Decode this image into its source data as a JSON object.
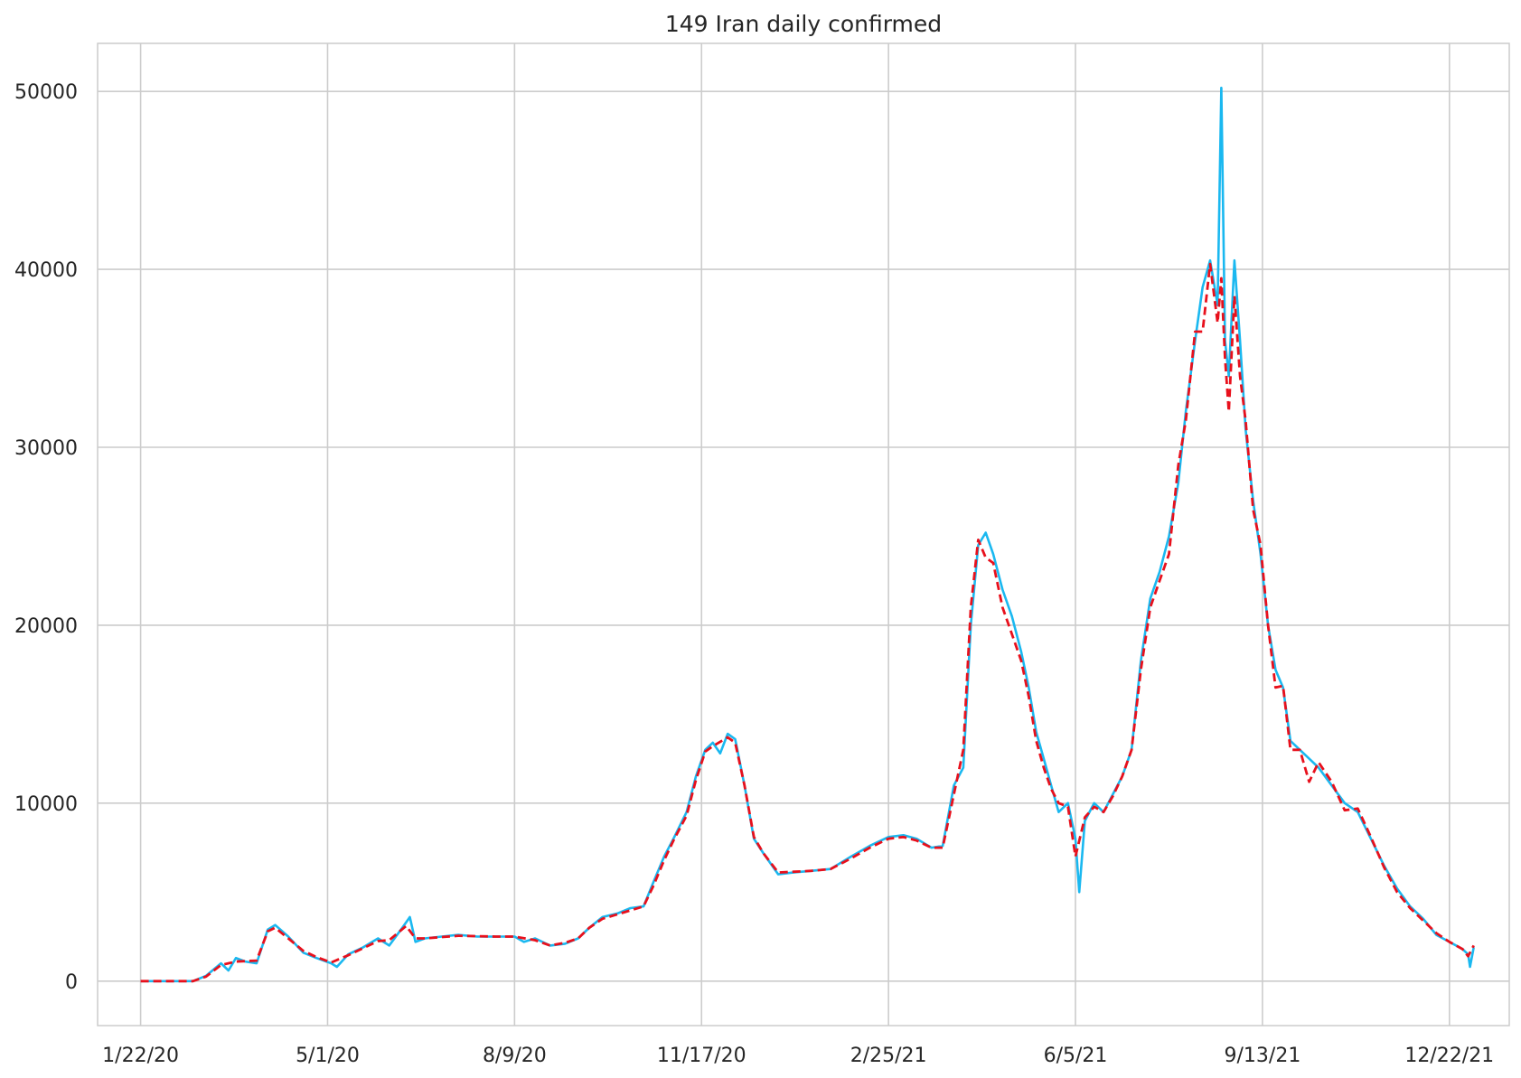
{
  "chart_data": {
    "type": "line",
    "title": "149 Iran daily confirmed",
    "xlabel": "",
    "ylabel": "",
    "x_start": "2020-01-22",
    "x_end": "2022-01-04",
    "xlim": [
      "2019-12-30",
      "2022-01-23"
    ],
    "ylim": [
      -2500,
      52700
    ],
    "x_ticks": [
      "1/22/20",
      "5/1/20",
      "8/9/20",
      "11/17/20",
      "2/25/21",
      "6/5/21",
      "9/13/21",
      "12/22/21"
    ],
    "y_ticks": [
      "0",
      "10000",
      "20000",
      "30000",
      "40000",
      "50000"
    ],
    "grid": true,
    "legend": "none",
    "series": [
      {
        "color": "#1ab8f0",
        "style": "solid",
        "points": [
          [
            "2020-01-22",
            0
          ],
          [
            "2020-02-19",
            0
          ],
          [
            "2020-02-26",
            300
          ],
          [
            "2020-03-05",
            1000
          ],
          [
            "2020-03-09",
            600
          ],
          [
            "2020-03-13",
            1300
          ],
          [
            "2020-03-18",
            1100
          ],
          [
            "2020-03-24",
            1000
          ],
          [
            "2020-03-30",
            2900
          ],
          [
            "2020-04-03",
            3150
          ],
          [
            "2020-04-10",
            2500
          ],
          [
            "2020-04-18",
            1600
          ],
          [
            "2020-04-25",
            1300
          ],
          [
            "2020-05-03",
            1000
          ],
          [
            "2020-05-06",
            800
          ],
          [
            "2020-05-12",
            1500
          ],
          [
            "2020-05-20",
            1900
          ],
          [
            "2020-05-28",
            2400
          ],
          [
            "2020-06-03",
            2000
          ],
          [
            "2020-06-10",
            3000
          ],
          [
            "2020-06-14",
            3600
          ],
          [
            "2020-06-17",
            2200
          ],
          [
            "2020-06-22",
            2400
          ],
          [
            "2020-07-01",
            2500
          ],
          [
            "2020-07-10",
            2600
          ],
          [
            "2020-07-20",
            2500
          ],
          [
            "2020-07-30",
            2500
          ],
          [
            "2020-08-09",
            2500
          ],
          [
            "2020-08-14",
            2200
          ],
          [
            "2020-08-20",
            2400
          ],
          [
            "2020-08-28",
            2000
          ],
          [
            "2020-09-05",
            2100
          ],
          [
            "2020-09-12",
            2400
          ],
          [
            "2020-09-18",
            3000
          ],
          [
            "2020-09-25",
            3600
          ],
          [
            "2020-10-03",
            3800
          ],
          [
            "2020-10-10",
            4100
          ],
          [
            "2020-10-17",
            4200
          ],
          [
            "2020-10-22",
            5500
          ],
          [
            "2020-10-28",
            7000
          ],
          [
            "2020-11-02",
            8000
          ],
          [
            "2020-11-09",
            9500
          ],
          [
            "2020-11-14",
            11500
          ],
          [
            "2020-11-19",
            13000
          ],
          [
            "2020-11-23",
            13400
          ],
          [
            "2020-11-27",
            12800
          ],
          [
            "2020-12-01",
            13900
          ],
          [
            "2020-12-05",
            13600
          ],
          [
            "2020-12-10",
            11000
          ],
          [
            "2020-12-15",
            8000
          ],
          [
            "2020-12-20",
            7200
          ],
          [
            "2020-12-28",
            6000
          ],
          [
            "2021-01-05",
            6100
          ],
          [
            "2021-01-15",
            6200
          ],
          [
            "2021-01-25",
            6300
          ],
          [
            "2021-02-05",
            7000
          ],
          [
            "2021-02-15",
            7600
          ],
          [
            "2021-02-25",
            8100
          ],
          [
            "2021-03-05",
            8200
          ],
          [
            "2021-03-12",
            8000
          ],
          [
            "2021-03-20",
            7500
          ],
          [
            "2021-03-26",
            7600
          ],
          [
            "2021-04-01",
            11000
          ],
          [
            "2021-04-06",
            12000
          ],
          [
            "2021-04-10",
            20000
          ],
          [
            "2021-04-14",
            24500
          ],
          [
            "2021-04-18",
            25200
          ],
          [
            "2021-04-22",
            24000
          ],
          [
            "2021-04-27",
            22000
          ],
          [
            "2021-05-02",
            20500
          ],
          [
            "2021-05-07",
            18500
          ],
          [
            "2021-05-11",
            16500
          ],
          [
            "2021-05-15",
            14000
          ],
          [
            "2021-05-19",
            12500
          ],
          [
            "2021-05-23",
            11000
          ],
          [
            "2021-05-27",
            9500
          ],
          [
            "2021-06-01",
            10000
          ],
          [
            "2021-06-05",
            8000
          ],
          [
            "2021-06-07",
            5000
          ],
          [
            "2021-06-10",
            9000
          ],
          [
            "2021-06-15",
            10000
          ],
          [
            "2021-06-20",
            9500
          ],
          [
            "2021-06-25",
            10500
          ],
          [
            "2021-06-30",
            11500
          ],
          [
            "2021-07-05",
            13000
          ],
          [
            "2021-07-10",
            18000
          ],
          [
            "2021-07-15",
            21500
          ],
          [
            "2021-07-20",
            23000
          ],
          [
            "2021-07-25",
            25000
          ],
          [
            "2021-07-30",
            28000
          ],
          [
            "2021-08-03",
            32000
          ],
          [
            "2021-08-08",
            36000
          ],
          [
            "2021-08-12",
            39000
          ],
          [
            "2021-08-16",
            40500
          ],
          [
            "2021-08-20",
            38000
          ],
          [
            "2021-08-22",
            50200
          ],
          [
            "2021-08-24",
            36000
          ],
          [
            "2021-08-26",
            34000
          ],
          [
            "2021-08-29",
            40500
          ],
          [
            "2021-09-01",
            36000
          ],
          [
            "2021-09-04",
            31000
          ],
          [
            "2021-09-08",
            27000
          ],
          [
            "2021-09-12",
            24000
          ],
          [
            "2021-09-16",
            20000
          ],
          [
            "2021-09-20",
            17500
          ],
          [
            "2021-09-24",
            16500
          ],
          [
            "2021-09-28",
            13500
          ],
          [
            "2021-10-03",
            13000
          ],
          [
            "2021-10-08",
            12500
          ],
          [
            "2021-10-13",
            12000
          ],
          [
            "2021-10-20",
            11000
          ],
          [
            "2021-10-27",
            10000
          ],
          [
            "2021-11-03",
            9500
          ],
          [
            "2021-11-10",
            8000
          ],
          [
            "2021-11-17",
            6500
          ],
          [
            "2021-11-24",
            5200
          ],
          [
            "2021-12-01",
            4200
          ],
          [
            "2021-12-08",
            3500
          ],
          [
            "2021-12-15",
            2600
          ],
          [
            "2021-12-22",
            2200
          ],
          [
            "2021-12-29",
            1800
          ],
          [
            "2022-01-01",
            1500
          ],
          [
            "2022-01-02",
            800
          ],
          [
            "2022-01-04",
            1900
          ]
        ]
      },
      {
        "color": "#e8101c",
        "style": "dashed",
        "points": [
          [
            "2020-01-22",
            0
          ],
          [
            "2020-02-19",
            0
          ],
          [
            "2020-02-26",
            250
          ],
          [
            "2020-03-05",
            900
          ],
          [
            "2020-03-13",
            1100
          ],
          [
            "2020-03-24",
            1150
          ],
          [
            "2020-03-30",
            2800
          ],
          [
            "2020-04-03",
            3000
          ],
          [
            "2020-04-10",
            2400
          ],
          [
            "2020-04-18",
            1700
          ],
          [
            "2020-04-25",
            1350
          ],
          [
            "2020-05-03",
            1050
          ],
          [
            "2020-05-12",
            1450
          ],
          [
            "2020-05-20",
            1850
          ],
          [
            "2020-05-28",
            2250
          ],
          [
            "2020-06-03",
            2300
          ],
          [
            "2020-06-12",
            3100
          ],
          [
            "2020-06-17",
            2400
          ],
          [
            "2020-06-22",
            2400
          ],
          [
            "2020-07-10",
            2550
          ],
          [
            "2020-07-30",
            2500
          ],
          [
            "2020-08-09",
            2500
          ],
          [
            "2020-08-20",
            2300
          ],
          [
            "2020-08-28",
            2000
          ],
          [
            "2020-09-05",
            2150
          ],
          [
            "2020-09-12",
            2400
          ],
          [
            "2020-09-18",
            3000
          ],
          [
            "2020-09-25",
            3500
          ],
          [
            "2020-10-03",
            3750
          ],
          [
            "2020-10-17",
            4200
          ],
          [
            "2020-10-22",
            5300
          ],
          [
            "2020-10-28",
            6800
          ],
          [
            "2020-11-02",
            7900
          ],
          [
            "2020-11-09",
            9300
          ],
          [
            "2020-11-14",
            11300
          ],
          [
            "2020-11-19",
            12900
          ],
          [
            "2020-11-23",
            13200
          ],
          [
            "2020-12-01",
            13700
          ],
          [
            "2020-12-05",
            13400
          ],
          [
            "2020-12-10",
            11000
          ],
          [
            "2020-12-15",
            8100
          ],
          [
            "2020-12-20",
            7200
          ],
          [
            "2020-12-28",
            6100
          ],
          [
            "2021-01-15",
            6200
          ],
          [
            "2021-01-25",
            6300
          ],
          [
            "2021-02-05",
            6900
          ],
          [
            "2021-02-15",
            7500
          ],
          [
            "2021-02-25",
            8000
          ],
          [
            "2021-03-05",
            8100
          ],
          [
            "2021-03-12",
            7900
          ],
          [
            "2021-03-20",
            7500
          ],
          [
            "2021-03-26",
            7500
          ],
          [
            "2021-04-01",
            10500
          ],
          [
            "2021-04-06",
            13000
          ],
          [
            "2021-04-10",
            21000
          ],
          [
            "2021-04-14",
            24800
          ],
          [
            "2021-04-18",
            23800
          ],
          [
            "2021-04-22",
            23500
          ],
          [
            "2021-04-27",
            21000
          ],
          [
            "2021-05-02",
            19500
          ],
          [
            "2021-05-07",
            18000
          ],
          [
            "2021-05-11",
            16000
          ],
          [
            "2021-05-15",
            13500
          ],
          [
            "2021-05-19",
            12000
          ],
          [
            "2021-05-23",
            10800
          ],
          [
            "2021-05-27",
            10000
          ],
          [
            "2021-06-01",
            9800
          ],
          [
            "2021-06-05",
            7000
          ],
          [
            "2021-06-10",
            9200
          ],
          [
            "2021-06-15",
            9800
          ],
          [
            "2021-06-20",
            9500
          ],
          [
            "2021-06-25",
            10400
          ],
          [
            "2021-06-30",
            11500
          ],
          [
            "2021-07-05",
            13000
          ],
          [
            "2021-07-10",
            17500
          ],
          [
            "2021-07-15",
            21000
          ],
          [
            "2021-07-20",
            22500
          ],
          [
            "2021-07-25",
            24000
          ],
          [
            "2021-07-30",
            29000
          ],
          [
            "2021-08-03",
            31500
          ],
          [
            "2021-08-08",
            36500
          ],
          [
            "2021-08-12",
            36500
          ],
          [
            "2021-08-16",
            40300
          ],
          [
            "2021-08-20",
            37000
          ],
          [
            "2021-08-22",
            39500
          ],
          [
            "2021-08-24",
            35000
          ],
          [
            "2021-08-26",
            32000
          ],
          [
            "2021-08-29",
            38500
          ],
          [
            "2021-09-01",
            34000
          ],
          [
            "2021-09-04",
            31500
          ],
          [
            "2021-09-08",
            26500
          ],
          [
            "2021-09-12",
            24500
          ],
          [
            "2021-09-16",
            20000
          ],
          [
            "2021-09-20",
            16500
          ],
          [
            "2021-09-24",
            16600
          ],
          [
            "2021-09-28",
            13000
          ],
          [
            "2021-10-03",
            13000
          ],
          [
            "2021-10-08",
            11200
          ],
          [
            "2021-10-13",
            12300
          ],
          [
            "2021-10-20",
            11200
          ],
          [
            "2021-10-27",
            9600
          ],
          [
            "2021-11-03",
            9700
          ],
          [
            "2021-11-10",
            8100
          ],
          [
            "2021-11-17",
            6400
          ],
          [
            "2021-11-24",
            5000
          ],
          [
            "2021-12-01",
            4100
          ],
          [
            "2021-12-08",
            3400
          ],
          [
            "2021-12-15",
            2700
          ],
          [
            "2021-12-22",
            2200
          ],
          [
            "2021-12-29",
            1800
          ],
          [
            "2022-01-01",
            1400
          ],
          [
            "2022-01-04",
            2000
          ]
        ]
      }
    ]
  }
}
